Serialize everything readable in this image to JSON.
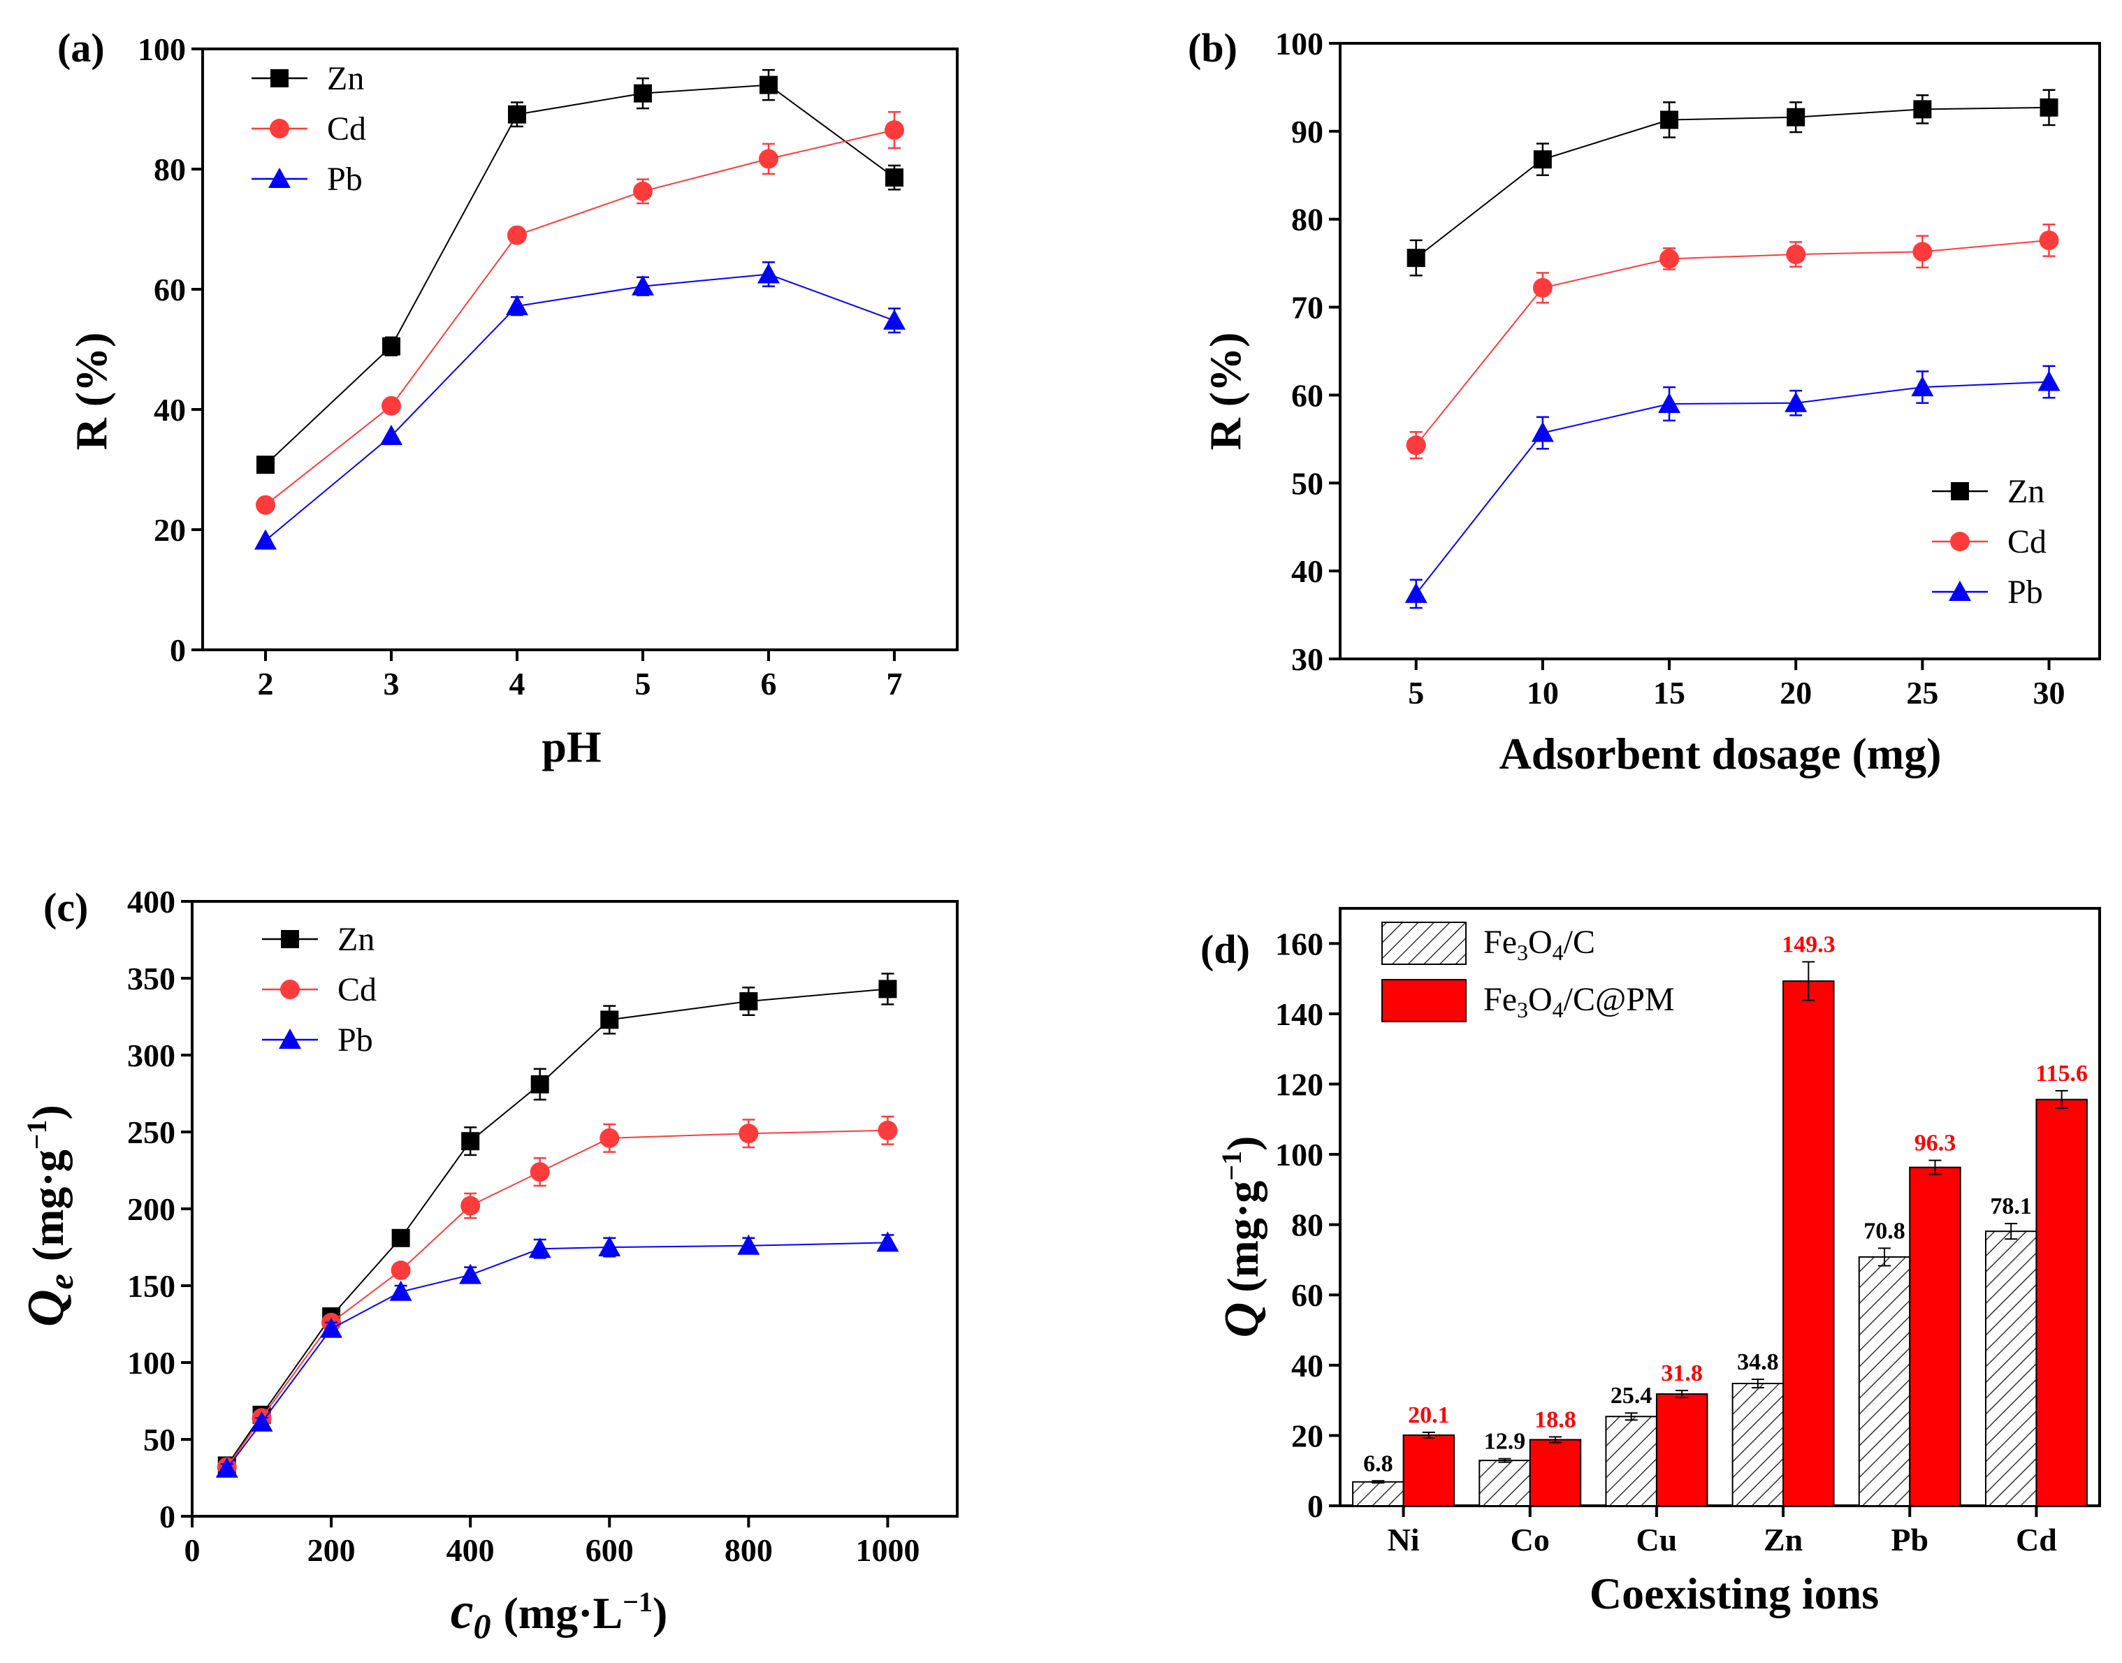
{
  "chart_data": [
    {
      "panel": "(a)",
      "type": "line",
      "xlabel": "pH",
      "ylabel": "R (%)",
      "xlim": [
        1.5,
        7.5
      ],
      "ylim": [
        0,
        100
      ],
      "xticks": [
        2,
        3,
        4,
        5,
        6,
        7
      ],
      "yticks": [
        0,
        20,
        40,
        60,
        80,
        100
      ],
      "legend_position": "top-left",
      "x": [
        2,
        3,
        4,
        5,
        6,
        7
      ],
      "series": [
        {
          "name": "Zn",
          "color": "#000000",
          "marker": "square",
          "values": [
            30.8,
            50.5,
            89.1,
            92.6,
            94.0,
            78.6
          ],
          "errors": [
            0,
            1.5,
            2.0,
            2.5,
            2.5,
            2.0
          ]
        },
        {
          "name": "Cd",
          "color": "#ff3b3b",
          "marker": "circle",
          "values": [
            24.1,
            40.6,
            69.0,
            76.3,
            81.7,
            86.5
          ],
          "errors": [
            0,
            0,
            0,
            2.0,
            2.5,
            3.0
          ]
        },
        {
          "name": "Pb",
          "color": "#0000ff",
          "marker": "triangle",
          "values": [
            18.2,
            35.6,
            57.2,
            60.5,
            62.5,
            54.8
          ],
          "errors": [
            0,
            0,
            1.5,
            1.5,
            2.0,
            2.0
          ]
        }
      ]
    },
    {
      "panel": "(b)",
      "type": "line",
      "xlabel": "Adsorbent dosage (mg)",
      "ylabel": "R (%)",
      "xlim": [
        2,
        32
      ],
      "ylim": [
        30,
        100
      ],
      "xticks": [
        5,
        10,
        15,
        20,
        25,
        30
      ],
      "yticks": [
        30,
        40,
        50,
        60,
        70,
        80,
        90,
        100
      ],
      "legend_position": "bottom-right",
      "x": [
        5,
        10,
        15,
        20,
        25,
        30
      ],
      "series": [
        {
          "name": "Zn",
          "color": "#000000",
          "marker": "square",
          "values": [
            75.6,
            86.8,
            91.3,
            91.6,
            92.5,
            92.7
          ],
          "errors": [
            2.0,
            1.8,
            2.0,
            1.7,
            1.6,
            2.0
          ]
        },
        {
          "name": "Cd",
          "color": "#ff3b3b",
          "marker": "circle",
          "values": [
            54.3,
            72.2,
            75.5,
            76.0,
            76.3,
            77.6
          ],
          "errors": [
            1.5,
            1.7,
            1.2,
            1.4,
            1.8,
            1.8
          ]
        },
        {
          "name": "Pb",
          "color": "#0000ff",
          "marker": "triangle",
          "values": [
            37.4,
            55.7,
            59.0,
            59.1,
            60.9,
            61.5
          ],
          "errors": [
            1.6,
            1.8,
            1.9,
            1.4,
            1.8,
            1.8
          ]
        }
      ]
    },
    {
      "panel": "(c)",
      "type": "line",
      "xlabel_main": "c",
      "xlabel_sub": "0",
      "xlabel_unit": "(mg·L",
      "xlabel_exp": "−1",
      "ylabel_main": "Q",
      "ylabel_sub": "e",
      "ylabel_unit": "(mg·g",
      "ylabel_exp": "−1",
      "xlim": [
        0,
        1100
      ],
      "ylim": [
        0,
        400
      ],
      "xticks": [
        0,
        200,
        400,
        600,
        800,
        1000
      ],
      "yticks": [
        0,
        50,
        100,
        150,
        200,
        250,
        300,
        350,
        400
      ],
      "legend_position": "top-left",
      "x": [
        50,
        100,
        200,
        300,
        400,
        500,
        600,
        800,
        1000
      ],
      "series": [
        {
          "name": "Zn",
          "color": "#000000",
          "marker": "square",
          "values": [
            33,
            66,
            130,
            181,
            244,
            281,
            323,
            335,
            343
          ],
          "errors": [
            3,
            3,
            4,
            4,
            9,
            10,
            9,
            9,
            10
          ]
        },
        {
          "name": "Cd",
          "color": "#ff3b3b",
          "marker": "circle",
          "values": [
            32,
            64,
            126,
            160,
            202,
            224,
            246,
            249,
            251
          ],
          "errors": [
            3,
            3,
            4,
            4,
            8,
            9,
            9,
            9,
            9
          ]
        },
        {
          "name": "Pb",
          "color": "#0000ff",
          "marker": "triangle",
          "values": [
            31,
            61,
            122,
            146,
            157,
            174,
            175,
            176,
            178
          ],
          "errors": [
            3,
            3,
            4,
            4,
            5,
            6,
            6,
            5,
            5
          ]
        }
      ]
    },
    {
      "panel": "(d)",
      "type": "bar",
      "xlabel": "Coexisting ions",
      "ylabel_main": "Q",
      "ylabel_unit": "(mg·g",
      "ylabel_exp": "−1",
      "ylim": [
        0,
        170
      ],
      "yticks": [
        0,
        20,
        40,
        60,
        80,
        100,
        120,
        140,
        160
      ],
      "legend_position": "top-left",
      "categories": [
        "Ni",
        "Co",
        "Cu",
        "Zn",
        "Pb",
        "Cd"
      ],
      "series": [
        {
          "name": "Fe3O4/C",
          "legend_parts": [
            "Fe",
            "3",
            "O",
            "4",
            "/C"
          ],
          "fill": "hatch",
          "label_color": "#000000",
          "values": [
            6.8,
            12.9,
            25.4,
            34.8,
            70.8,
            78.1
          ],
          "labels": [
            "6.8",
            "12.9",
            "25.4",
            "34.8",
            "70.8",
            "78.1"
          ],
          "errors": [
            0.3,
            0.5,
            1.0,
            1.2,
            2.5,
            2.2
          ]
        },
        {
          "name": "Fe3O4/C@PM",
          "legend_parts": [
            "Fe",
            "3",
            "O",
            "4",
            "/C@PM"
          ],
          "fill": "#ff0000",
          "label_color": "#ff0000",
          "values": [
            20.1,
            18.8,
            31.8,
            149.3,
            96.3,
            115.6
          ],
          "labels": [
            "20.1",
            "18.8",
            "31.8",
            "149.3",
            "96.3",
            "115.6"
          ],
          "errors": [
            0.8,
            0.8,
            1.0,
            5.5,
            2.0,
            2.5
          ]
        }
      ]
    }
  ]
}
